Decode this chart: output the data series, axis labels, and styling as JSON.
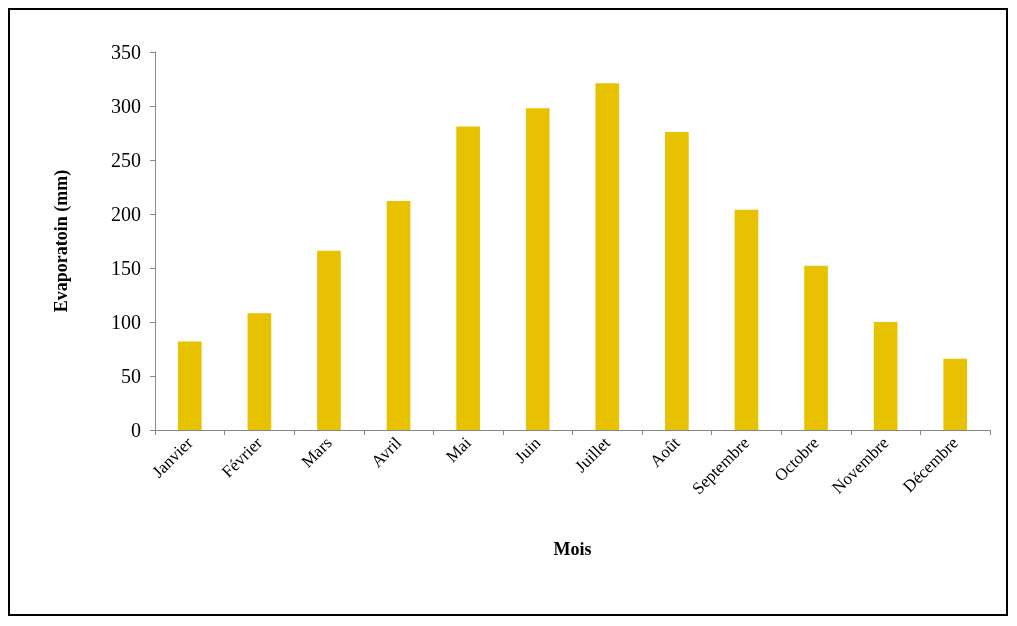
{
  "chart_data": {
    "type": "bar",
    "xlabel": "Mois",
    "ylabel": "Evaporatoin (mm)",
    "categories": [
      "Janvier",
      "Février",
      "Mars",
      "Avril",
      "Mai",
      "Juin",
      "Juillet",
      "Août",
      "Septembre",
      "Octobre",
      "Novembre",
      "Décembre"
    ],
    "values": [
      82,
      108,
      166,
      212,
      281,
      298,
      321,
      276,
      204,
      152,
      100,
      66
    ],
    "color": "#e8c200",
    "ylim": [
      0,
      350
    ],
    "yticks": [
      0,
      50,
      100,
      150,
      200,
      250,
      300,
      350
    ],
    "grid": false
  }
}
